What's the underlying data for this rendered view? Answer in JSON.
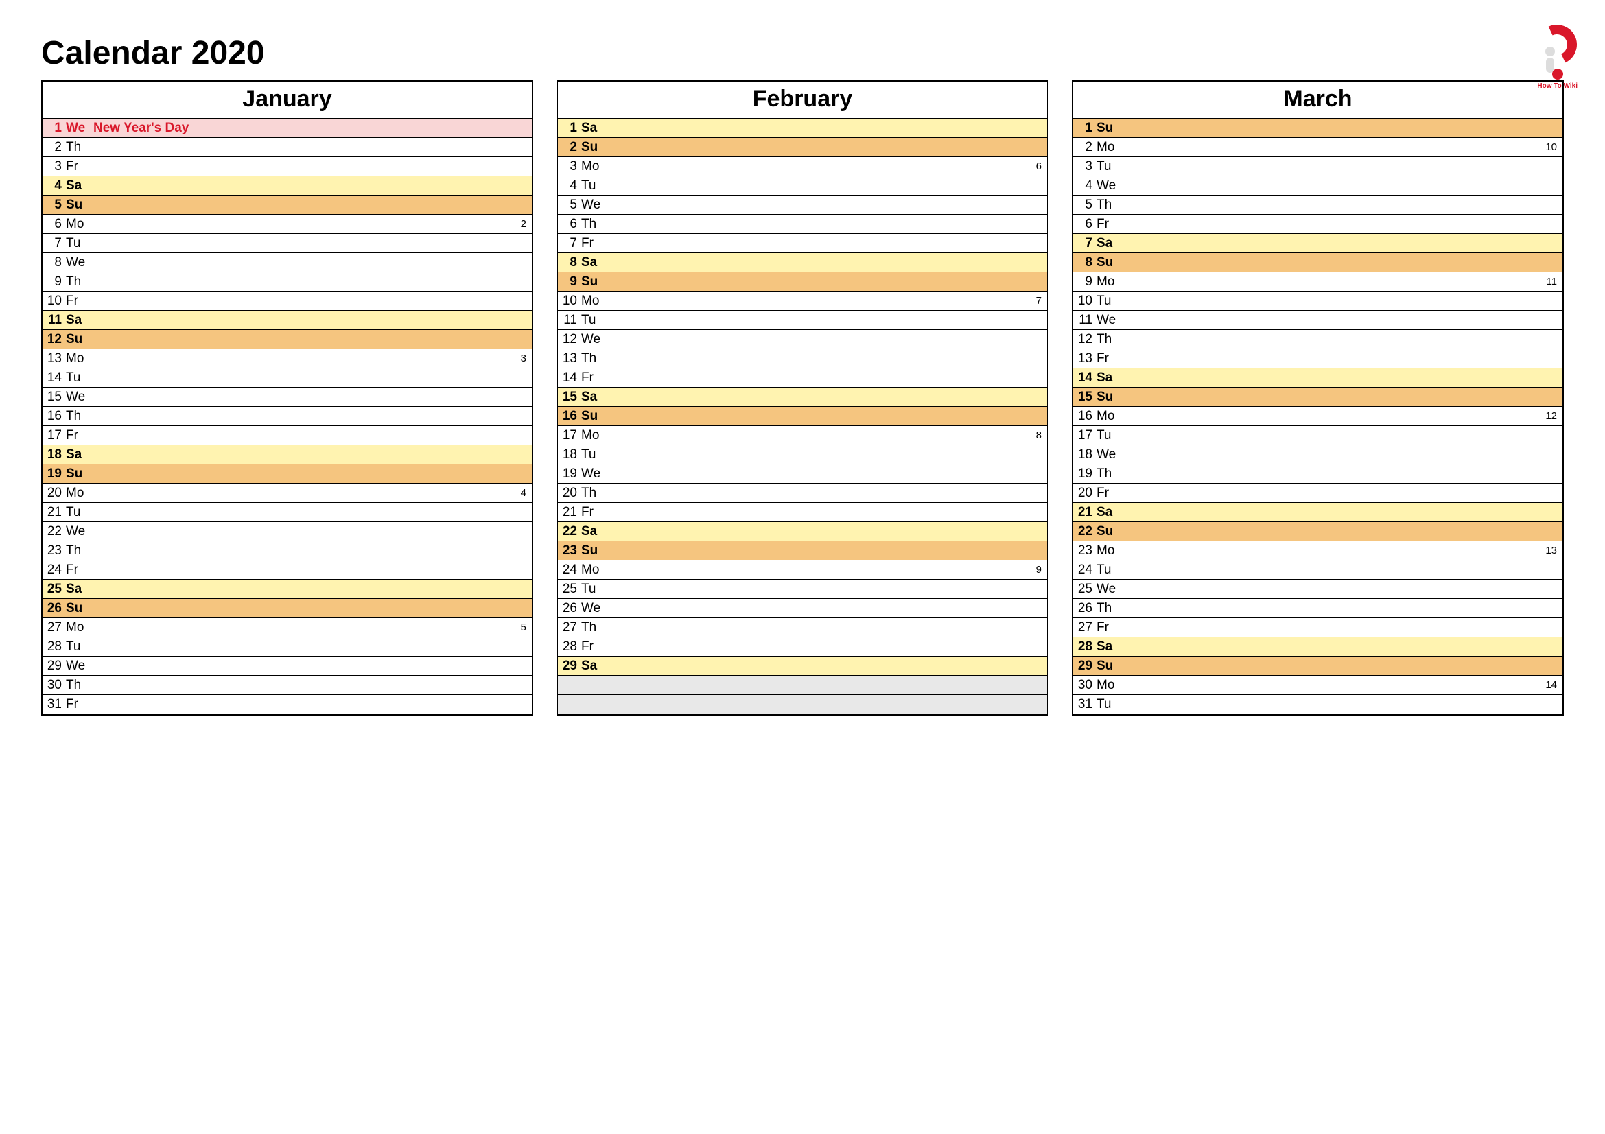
{
  "title": "Calendar 2020",
  "logo_text": "How To Wiki",
  "colors": {
    "saturday_bg": "#fff3b0",
    "sunday_bg": "#f5c57f",
    "holiday_bg": "#f9d6d6",
    "holiday_text": "#d9172a",
    "empty_bg": "#e8e8e8",
    "border": "#000000",
    "background": "#ffffff"
  },
  "typography": {
    "title_fontsize": 48,
    "month_header_fontsize": 34,
    "row_fontsize": 19,
    "weeknum_fontsize": 15,
    "font_family": "Arial"
  },
  "months": [
    {
      "name": "January",
      "days": [
        {
          "num": "1",
          "abbr": "We",
          "event": "New Year's Day",
          "type": "holiday",
          "week": ""
        },
        {
          "num": "2",
          "abbr": "Th",
          "event": "",
          "type": "",
          "week": ""
        },
        {
          "num": "3",
          "abbr": "Fr",
          "event": "",
          "type": "",
          "week": ""
        },
        {
          "num": "4",
          "abbr": "Sa",
          "event": "",
          "type": "sat",
          "week": ""
        },
        {
          "num": "5",
          "abbr": "Su",
          "event": "",
          "type": "sun",
          "week": ""
        },
        {
          "num": "6",
          "abbr": "Mo",
          "event": "",
          "type": "",
          "week": "2"
        },
        {
          "num": "7",
          "abbr": "Tu",
          "event": "",
          "type": "",
          "week": ""
        },
        {
          "num": "8",
          "abbr": "We",
          "event": "",
          "type": "",
          "week": ""
        },
        {
          "num": "9",
          "abbr": "Th",
          "event": "",
          "type": "",
          "week": ""
        },
        {
          "num": "10",
          "abbr": "Fr",
          "event": "",
          "type": "",
          "week": ""
        },
        {
          "num": "11",
          "abbr": "Sa",
          "event": "",
          "type": "sat",
          "week": ""
        },
        {
          "num": "12",
          "abbr": "Su",
          "event": "",
          "type": "sun",
          "week": ""
        },
        {
          "num": "13",
          "abbr": "Mo",
          "event": "",
          "type": "",
          "week": "3"
        },
        {
          "num": "14",
          "abbr": "Tu",
          "event": "",
          "type": "",
          "week": ""
        },
        {
          "num": "15",
          "abbr": "We",
          "event": "",
          "type": "",
          "week": ""
        },
        {
          "num": "16",
          "abbr": "Th",
          "event": "",
          "type": "",
          "week": ""
        },
        {
          "num": "17",
          "abbr": "Fr",
          "event": "",
          "type": "",
          "week": ""
        },
        {
          "num": "18",
          "abbr": "Sa",
          "event": "",
          "type": "sat",
          "week": ""
        },
        {
          "num": "19",
          "abbr": "Su",
          "event": "",
          "type": "sun",
          "week": ""
        },
        {
          "num": "20",
          "abbr": "Mo",
          "event": "",
          "type": "",
          "week": "4"
        },
        {
          "num": "21",
          "abbr": "Tu",
          "event": "",
          "type": "",
          "week": ""
        },
        {
          "num": "22",
          "abbr": "We",
          "event": "",
          "type": "",
          "week": ""
        },
        {
          "num": "23",
          "abbr": "Th",
          "event": "",
          "type": "",
          "week": ""
        },
        {
          "num": "24",
          "abbr": "Fr",
          "event": "",
          "type": "",
          "week": ""
        },
        {
          "num": "25",
          "abbr": "Sa",
          "event": "",
          "type": "sat",
          "week": ""
        },
        {
          "num": "26",
          "abbr": "Su",
          "event": "",
          "type": "sun",
          "week": ""
        },
        {
          "num": "27",
          "abbr": "Mo",
          "event": "",
          "type": "",
          "week": "5"
        },
        {
          "num": "28",
          "abbr": "Tu",
          "event": "",
          "type": "",
          "week": ""
        },
        {
          "num": "29",
          "abbr": "We",
          "event": "",
          "type": "",
          "week": ""
        },
        {
          "num": "30",
          "abbr": "Th",
          "event": "",
          "type": "",
          "week": ""
        },
        {
          "num": "31",
          "abbr": "Fr",
          "event": "",
          "type": "",
          "week": ""
        }
      ]
    },
    {
      "name": "February",
      "days": [
        {
          "num": "1",
          "abbr": "Sa",
          "event": "",
          "type": "sat",
          "week": ""
        },
        {
          "num": "2",
          "abbr": "Su",
          "event": "",
          "type": "sun",
          "week": ""
        },
        {
          "num": "3",
          "abbr": "Mo",
          "event": "",
          "type": "",
          "week": "6"
        },
        {
          "num": "4",
          "abbr": "Tu",
          "event": "",
          "type": "",
          "week": ""
        },
        {
          "num": "5",
          "abbr": "We",
          "event": "",
          "type": "",
          "week": ""
        },
        {
          "num": "6",
          "abbr": "Th",
          "event": "",
          "type": "",
          "week": ""
        },
        {
          "num": "7",
          "abbr": "Fr",
          "event": "",
          "type": "",
          "week": ""
        },
        {
          "num": "8",
          "abbr": "Sa",
          "event": "",
          "type": "sat",
          "week": ""
        },
        {
          "num": "9",
          "abbr": "Su",
          "event": "",
          "type": "sun",
          "week": ""
        },
        {
          "num": "10",
          "abbr": "Mo",
          "event": "",
          "type": "",
          "week": "7"
        },
        {
          "num": "11",
          "abbr": "Tu",
          "event": "",
          "type": "",
          "week": ""
        },
        {
          "num": "12",
          "abbr": "We",
          "event": "",
          "type": "",
          "week": ""
        },
        {
          "num": "13",
          "abbr": "Th",
          "event": "",
          "type": "",
          "week": ""
        },
        {
          "num": "14",
          "abbr": "Fr",
          "event": "",
          "type": "",
          "week": ""
        },
        {
          "num": "15",
          "abbr": "Sa",
          "event": "",
          "type": "sat",
          "week": ""
        },
        {
          "num": "16",
          "abbr": "Su",
          "event": "",
          "type": "sun",
          "week": ""
        },
        {
          "num": "17",
          "abbr": "Mo",
          "event": "",
          "type": "",
          "week": "8"
        },
        {
          "num": "18",
          "abbr": "Tu",
          "event": "",
          "type": "",
          "week": ""
        },
        {
          "num": "19",
          "abbr": "We",
          "event": "",
          "type": "",
          "week": ""
        },
        {
          "num": "20",
          "abbr": "Th",
          "event": "",
          "type": "",
          "week": ""
        },
        {
          "num": "21",
          "abbr": "Fr",
          "event": "",
          "type": "",
          "week": ""
        },
        {
          "num": "22",
          "abbr": "Sa",
          "event": "",
          "type": "sat",
          "week": ""
        },
        {
          "num": "23",
          "abbr": "Su",
          "event": "",
          "type": "sun",
          "week": ""
        },
        {
          "num": "24",
          "abbr": "Mo",
          "event": "",
          "type": "",
          "week": "9"
        },
        {
          "num": "25",
          "abbr": "Tu",
          "event": "",
          "type": "",
          "week": ""
        },
        {
          "num": "26",
          "abbr": "We",
          "event": "",
          "type": "",
          "week": ""
        },
        {
          "num": "27",
          "abbr": "Th",
          "event": "",
          "type": "",
          "week": ""
        },
        {
          "num": "28",
          "abbr": "Fr",
          "event": "",
          "type": "",
          "week": ""
        },
        {
          "num": "29",
          "abbr": "Sa",
          "event": "",
          "type": "sat",
          "week": ""
        },
        {
          "num": "",
          "abbr": "",
          "event": "",
          "type": "empty",
          "week": ""
        },
        {
          "num": "",
          "abbr": "",
          "event": "",
          "type": "empty",
          "week": ""
        }
      ]
    },
    {
      "name": "March",
      "days": [
        {
          "num": "1",
          "abbr": "Su",
          "event": "",
          "type": "sun",
          "week": ""
        },
        {
          "num": "2",
          "abbr": "Mo",
          "event": "",
          "type": "",
          "week": "10"
        },
        {
          "num": "3",
          "abbr": "Tu",
          "event": "",
          "type": "",
          "week": ""
        },
        {
          "num": "4",
          "abbr": "We",
          "event": "",
          "type": "",
          "week": ""
        },
        {
          "num": "5",
          "abbr": "Th",
          "event": "",
          "type": "",
          "week": ""
        },
        {
          "num": "6",
          "abbr": "Fr",
          "event": "",
          "type": "",
          "week": ""
        },
        {
          "num": "7",
          "abbr": "Sa",
          "event": "",
          "type": "sat",
          "week": ""
        },
        {
          "num": "8",
          "abbr": "Su",
          "event": "",
          "type": "sun",
          "week": ""
        },
        {
          "num": "9",
          "abbr": "Mo",
          "event": "",
          "type": "",
          "week": "11"
        },
        {
          "num": "10",
          "abbr": "Tu",
          "event": "",
          "type": "",
          "week": ""
        },
        {
          "num": "11",
          "abbr": "We",
          "event": "",
          "type": "",
          "week": ""
        },
        {
          "num": "12",
          "abbr": "Th",
          "event": "",
          "type": "",
          "week": ""
        },
        {
          "num": "13",
          "abbr": "Fr",
          "event": "",
          "type": "",
          "week": ""
        },
        {
          "num": "14",
          "abbr": "Sa",
          "event": "",
          "type": "sat",
          "week": ""
        },
        {
          "num": "15",
          "abbr": "Su",
          "event": "",
          "type": "sun",
          "week": ""
        },
        {
          "num": "16",
          "abbr": "Mo",
          "event": "",
          "type": "",
          "week": "12"
        },
        {
          "num": "17",
          "abbr": "Tu",
          "event": "",
          "type": "",
          "week": ""
        },
        {
          "num": "18",
          "abbr": "We",
          "event": "",
          "type": "",
          "week": ""
        },
        {
          "num": "19",
          "abbr": "Th",
          "event": "",
          "type": "",
          "week": ""
        },
        {
          "num": "20",
          "abbr": "Fr",
          "event": "",
          "type": "",
          "week": ""
        },
        {
          "num": "21",
          "abbr": "Sa",
          "event": "",
          "type": "sat",
          "week": ""
        },
        {
          "num": "22",
          "abbr": "Su",
          "event": "",
          "type": "sun",
          "week": ""
        },
        {
          "num": "23",
          "abbr": "Mo",
          "event": "",
          "type": "",
          "week": "13"
        },
        {
          "num": "24",
          "abbr": "Tu",
          "event": "",
          "type": "",
          "week": ""
        },
        {
          "num": "25",
          "abbr": "We",
          "event": "",
          "type": "",
          "week": ""
        },
        {
          "num": "26",
          "abbr": "Th",
          "event": "",
          "type": "",
          "week": ""
        },
        {
          "num": "27",
          "abbr": "Fr",
          "event": "",
          "type": "",
          "week": ""
        },
        {
          "num": "28",
          "abbr": "Sa",
          "event": "",
          "type": "sat",
          "week": ""
        },
        {
          "num": "29",
          "abbr": "Su",
          "event": "",
          "type": "sun",
          "week": ""
        },
        {
          "num": "30",
          "abbr": "Mo",
          "event": "",
          "type": "",
          "week": "14"
        },
        {
          "num": "31",
          "abbr": "Tu",
          "event": "",
          "type": "",
          "week": ""
        }
      ]
    }
  ]
}
